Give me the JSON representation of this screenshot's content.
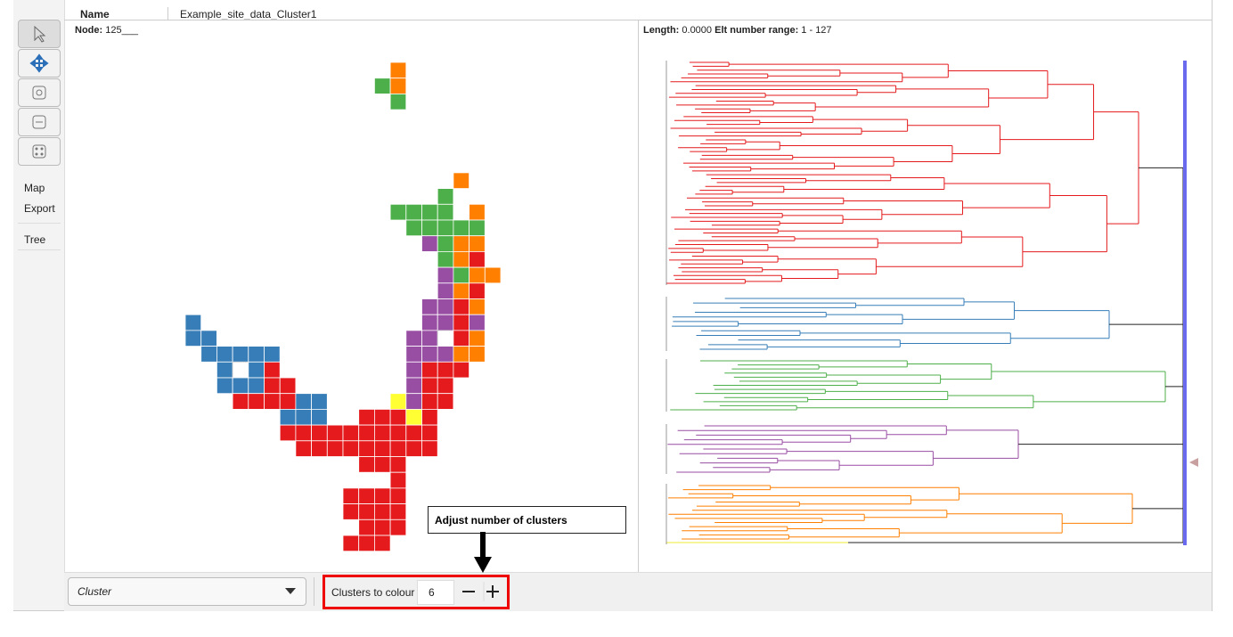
{
  "header": {
    "name_label": "Name",
    "name_value": "Example_site_data_Cluster1"
  },
  "sidebar": {
    "items": [
      "Map",
      "Export",
      "Tree"
    ]
  },
  "map_panel": {
    "node_label": "Node:",
    "node_value": "125___"
  },
  "tree_panel": {
    "length_label": "Length:",
    "length_value": "0.0000",
    "range_label": "Elt number range:",
    "range_value": "1 - 127"
  },
  "bottom_bar": {
    "dropdown": "Cluster",
    "clusters_label": "Clusters to colour",
    "clusters_value": "6"
  },
  "annotation": {
    "text": "Adjust number of clusters"
  }
}
